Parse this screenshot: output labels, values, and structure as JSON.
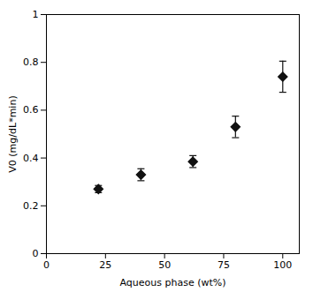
{
  "chart_data": {
    "type": "scatter",
    "x": [
      22,
      40,
      62,
      80,
      100
    ],
    "values": [
      0.27,
      0.33,
      0.385,
      0.53,
      0.74
    ],
    "yerr": [
      0.015,
      0.025,
      0.025,
      0.045,
      0.065
    ],
    "xlabel": "Aqueous phase (wt%)",
    "ylabel": "V0 (mg/dL*min)",
    "xlim": [
      0,
      107
    ],
    "ylim": [
      0,
      1
    ],
    "xticks": [
      0,
      25,
      50,
      75,
      100
    ],
    "yticks": [
      0,
      0.2,
      0.4,
      0.6,
      0.8,
      1
    ],
    "color": "#111111",
    "marker": "diamond"
  }
}
